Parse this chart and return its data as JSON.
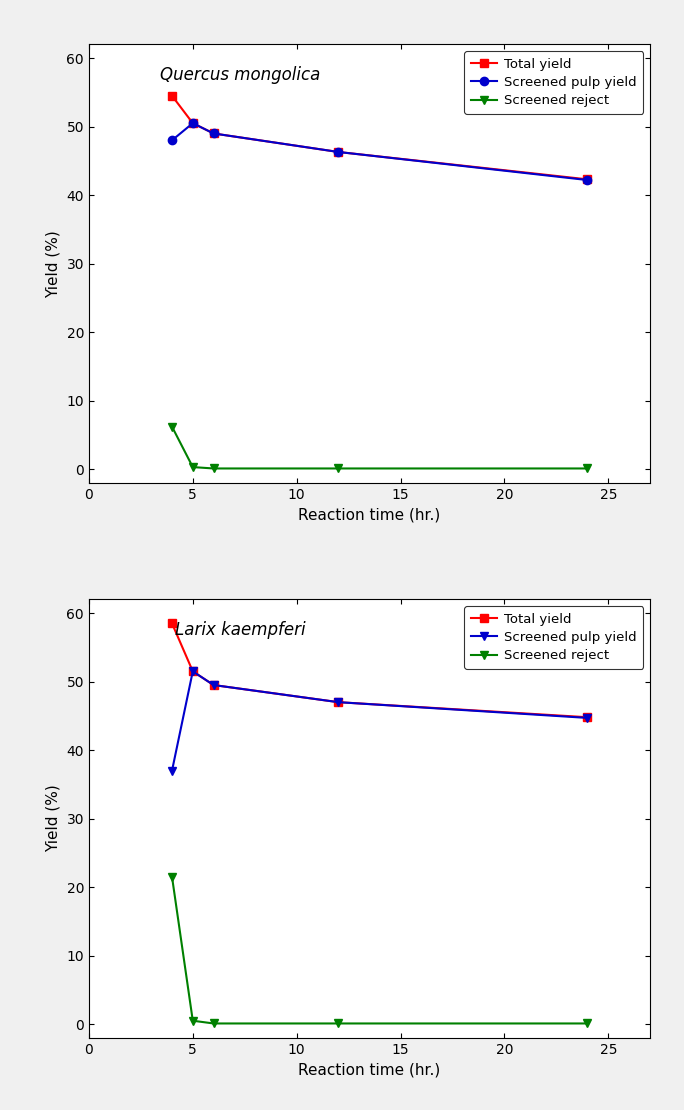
{
  "plot1": {
    "title": "Quercus mongolica",
    "total_yield": {
      "x": [
        4,
        5,
        6,
        12,
        24
      ],
      "y": [
        54.5,
        50.5,
        49.0,
        46.3,
        42.3
      ]
    },
    "screened_pulp": {
      "x": [
        4,
        5,
        6,
        12,
        24
      ],
      "y": [
        48.0,
        50.5,
        49.0,
        46.3,
        42.2
      ]
    },
    "screened_reject": {
      "x": [
        4,
        5,
        6,
        12,
        24
      ],
      "y": [
        6.2,
        0.3,
        0.1,
        0.1,
        0.1
      ]
    },
    "pulp_marker": "o"
  },
  "plot2": {
    "title": "Larix kaempferi",
    "total_yield": {
      "x": [
        4,
        5,
        6,
        12,
        24
      ],
      "y": [
        58.5,
        51.5,
        49.5,
        47.0,
        44.8
      ]
    },
    "screened_pulp": {
      "x": [
        4,
        5,
        6,
        12,
        24
      ],
      "y": [
        37.0,
        51.5,
        49.5,
        47.0,
        44.7
      ]
    },
    "screened_reject": {
      "x": [
        4,
        5,
        6,
        12,
        24
      ],
      "y": [
        21.5,
        0.5,
        0.1,
        0.1,
        0.1
      ]
    },
    "pulp_marker": "v"
  },
  "colors": {
    "total_yield": "#ff0000",
    "screened_pulp": "#0000cc",
    "screened_reject": "#008000"
  },
  "xlabel": "Reaction time (hr.)",
  "ylabel": "Yield (%)",
  "xlim": [
    0,
    27
  ],
  "ylim": [
    -2,
    62
  ],
  "xticks": [
    0,
    5,
    10,
    15,
    20,
    25
  ],
  "yticks": [
    0,
    10,
    20,
    30,
    40,
    50,
    60
  ],
  "legend_labels": [
    "Total yield",
    "Screened pulp yield",
    "Screened reject"
  ],
  "bg_color": "#f0f0f0",
  "axes_bg_color": "#ffffff"
}
